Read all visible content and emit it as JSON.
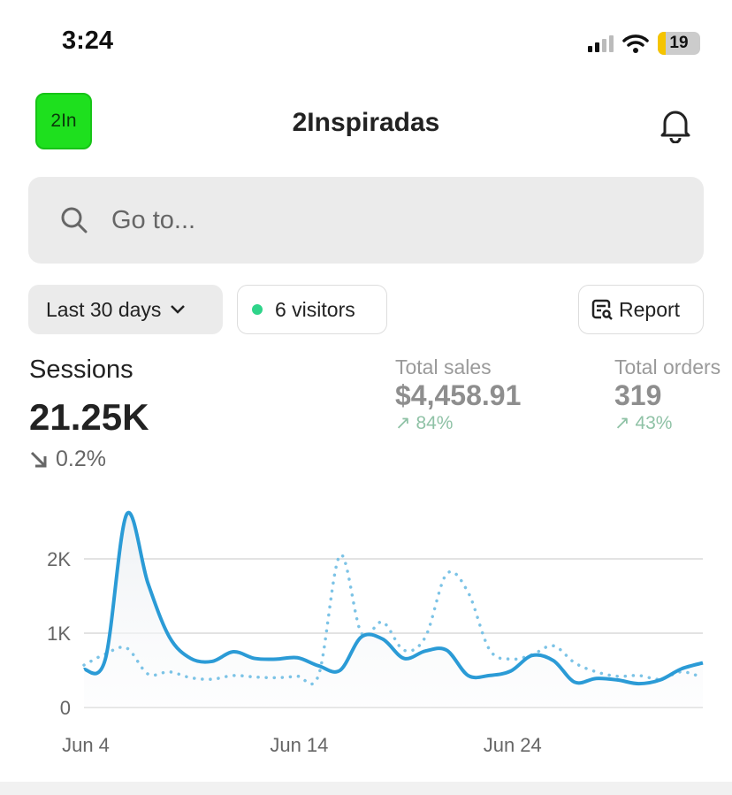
{
  "status_bar": {
    "time": "3:24",
    "battery": "19"
  },
  "header": {
    "logo": "2In",
    "title": "2Inspiradas",
    "bell_icon": "bell-icon"
  },
  "search": {
    "placeholder": "Go to..."
  },
  "filters": {
    "date_range": "Last 30 days",
    "visitors": "6 visitors",
    "report": "Report"
  },
  "metrics": {
    "sessions": {
      "label": "Sessions",
      "value": "21.25K",
      "change": "0.2%",
      "direction": "down"
    },
    "total_sales": {
      "label": "Total sales",
      "value": "$4,458.91",
      "change": "84%",
      "direction": "up"
    },
    "total_orders": {
      "label": "Total orders",
      "value": "319",
      "change": "43%",
      "direction": "up"
    }
  },
  "colors": {
    "accent": "#2b9bd6",
    "positive": "#8fc2a6",
    "logo": "#1ee01e"
  },
  "chart_data": {
    "type": "line",
    "x_ticks": [
      "Jun 4",
      "Jun 14",
      "Jun 24"
    ],
    "y_ticks": [
      "0",
      "1K",
      "2K"
    ],
    "ylim": [
      0,
      2700
    ],
    "grid": true,
    "x_start": "Jun 4",
    "series": [
      {
        "style": "solid",
        "values": [
          510,
          650,
          2600,
          1670,
          950,
          660,
          620,
          750,
          660,
          650,
          670,
          560,
          500,
          950,
          920,
          660,
          760,
          770,
          430,
          430,
          490,
          700,
          630,
          340,
          390,
          370,
          320,
          370,
          520,
          600
        ]
      },
      {
        "style": "dotted",
        "values": [
          570,
          720,
          800,
          450,
          480,
          400,
          380,
          430,
          410,
          400,
          420,
          440,
          2050,
          1000,
          1150,
          770,
          950,
          1800,
          1550,
          780,
          650,
          710,
          830,
          600,
          480,
          420,
          430,
          380,
          480,
          400
        ]
      }
    ]
  }
}
